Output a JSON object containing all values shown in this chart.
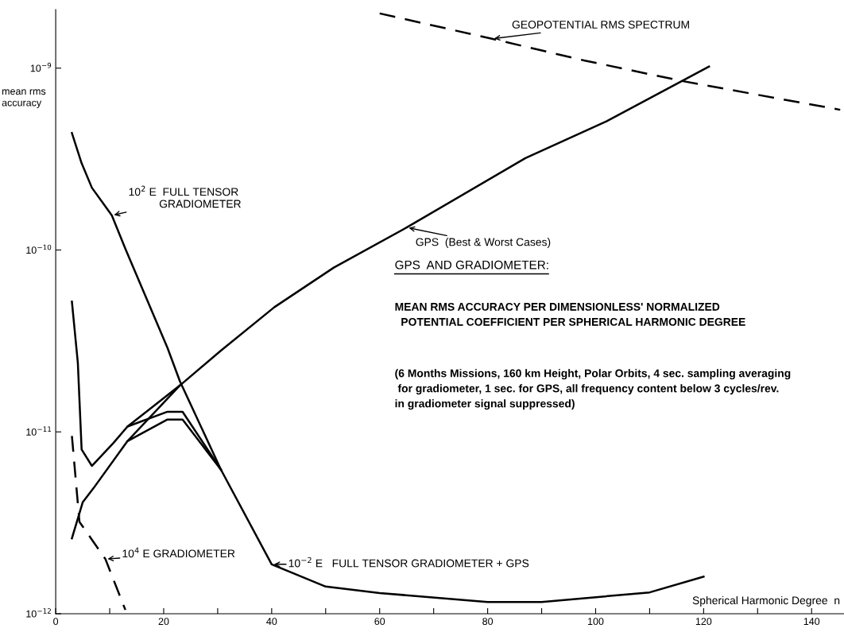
{
  "chart_data": {
    "type": "line",
    "xlabel": "Spherical Harmonic Degree  n",
    "ylabel": "mean rms\naccuracy",
    "log": "y",
    "xlim": [
      0,
      146
    ],
    "ylim": [
      1e-12,
      2.1e-09
    ],
    "xticks": [
      0,
      {
        "value": 10,
        "label": null
      },
      20,
      {
        "value": 30,
        "label": null
      },
      40,
      {
        "value": 50,
        "label": null
      },
      60,
      {
        "value": 70,
        "label": null
      },
      80,
      {
        "value": 90,
        "label": null
      },
      100,
      {
        "value": 110,
        "label": null
      },
      120,
      {
        "value": 130,
        "label": null
      },
      140
    ],
    "yticks": [
      {
        "value": 1e-12,
        "label": "10$^{−12}$"
      },
      {
        "value": 1e-11,
        "label": "10$^{−11}$"
      },
      {
        "value": 1e-10,
        "label": "10$^{−10}$"
      },
      {
        "value": 1e-09,
        "label": "10$^{−9}$"
      }
    ],
    "grid": false,
    "marker": "none",
    "series": [
      {
        "color": "#000000",
        "line_style": "solid",
        "x": [
          3,
          4.8,
          6.7,
          10.4,
          13,
          20.7,
          23,
          30.6,
          40,
          50,
          60,
          80,
          90,
          110,
          120
        ],
        "values": [
          4.4e-10,
          3e-10,
          2.2e-10,
          1.55e-10,
          1e-10,
          2.9e-11,
          1.9e-11,
          6.2e-12,
          1.87e-12,
          1.41e-12,
          1.3e-12,
          1.16e-12,
          1.16e-12,
          1.31e-12,
          1.6e-12
        ]
      },
      {
        "color": "#000000",
        "line_style": "solid",
        "x": [
          3,
          4.1,
          4.8,
          6.7,
          10.7,
          13.3,
          20.7,
          23.5,
          30.6
        ],
        "values": [
          5.2e-11,
          2.4e-11,
          8e-12,
          6.5e-12,
          8.7e-12,
          1.07e-11,
          1.29e-11,
          1.29e-11,
          6.2e-12
        ]
      },
      {
        "color": "#000000",
        "line_style": "solid",
        "x": [
          3,
          5,
          7,
          13.3,
          20.7,
          23.5,
          30.6
        ],
        "values": [
          2.6e-12,
          4.1e-12,
          4.9e-12,
          8.9e-12,
          1.17e-11,
          1.17e-11,
          6.2e-12
        ]
      },
      {
        "color": "#000000",
        "line_style": "solid",
        "x": [
          13.3,
          23,
          30.6,
          40.5,
          51.5,
          65,
          87,
          102,
          121
        ],
        "values": [
          1.07e-11,
          1.8e-11,
          2.8e-11,
          4.85e-11,
          8e-11,
          1.33e-10,
          3.2e-10,
          5.1e-10,
          1.02e-09
        ]
      },
      {
        "color": "#000000",
        "line_style": "solid",
        "x": [
          13.3,
          23
        ],
        "values": [
          8.9e-12,
          1.8e-11
        ]
      },
      {
        "color": "#000000",
        "line_style": "dashed",
        "x": [
          3,
          4.4,
          9.2,
          12.9
        ],
        "values": [
          9.5e-12,
          3.2e-12,
          2e-12,
          1.05e-12
        ]
      },
      {
        "color": "#000000",
        "line_style": "dashed",
        "x": [
          60,
          80.8,
          98,
          116,
          145.3
        ],
        "values": [
          2e-09,
          1.45e-09,
          1.1e-09,
          8.5e-10,
          5.9e-10
        ]
      }
    ],
    "annotations": [
      {
        "text": "10$^{2}$ E  FULL TENSOR\n          GRADIOMETER",
        "x": 10.4,
        "y": 1.55e-10
      },
      {
        "text": "GPS  (Best & Worst Cases)",
        "x": 65,
        "y": 1.33e-10
      },
      {
        "text": "10$^{−2}$ E   FULL TENSOR GRADIOMETER + GPS",
        "x": 40,
        "y": 1.87e-12
      },
      {
        "text": "10$^{4}$ E GRADIOMETER",
        "x": 9.2,
        "y": 2e-12
      },
      {
        "text": "GEOPOTENTIAL RMS SPECTRUM",
        "x": 80.8,
        "y": 1.45e-09
      },
      "GPS  AND GRADIOMETER:",
      "MEAN RMS ACCURACY PER DIMENSIONLESS' NORMALIZED\n  POTENTIAL COEFFICIENT PER SPHERICAL HARMONIC DEGREE",
      "(6 Months Missions, 160 km Height, Polar Orbits, 4 sec. sampling averaging\n for gradiometer, 1 sec. for GPS, all frequency content below 3 cycles/rev.\nin gradiometer signal suppressed)"
    ]
  }
}
